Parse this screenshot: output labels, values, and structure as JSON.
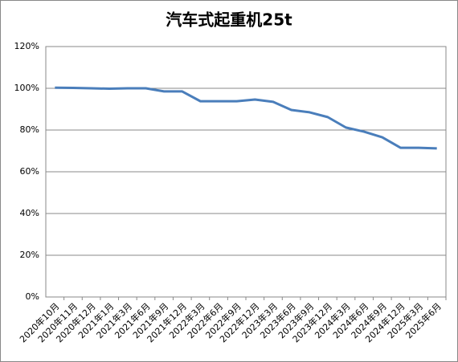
{
  "chart_data": {
    "type": "line",
    "title": "汽车式起重机25t",
    "categories": [
      "2020年10月",
      "2020年11月",
      "2020年12月",
      "2021年1月",
      "2021年3月",
      "2021年6月",
      "2021年9月",
      "2021年12月",
      "2022年3月",
      "2022年6月",
      "2022年9月",
      "2022年12月",
      "2023年3月",
      "2023年6月",
      "2023年9月",
      "2023年12月",
      "2024年3月",
      "2024年6月",
      "2024年9月",
      "2024年12月",
      "2025年3月",
      "2025年6月"
    ],
    "values": [
      100.3,
      100.2,
      100.0,
      99.8,
      100.0,
      100.0,
      98.5,
      98.5,
      93.8,
      93.8,
      93.8,
      94.6,
      93.5,
      89.6,
      88.5,
      86.2,
      81.2,
      79.2,
      76.5,
      71.5,
      71.5,
      71.2
    ],
    "color": "#4a7ebb",
    "ylim": [
      0,
      120
    ],
    "yticks": [
      {
        "value": 0,
        "label": "0%"
      },
      {
        "value": 20,
        "label": "20%"
      },
      {
        "value": 40,
        "label": "40%"
      },
      {
        "value": 60,
        "label": "60%"
      },
      {
        "value": 80,
        "label": "80%"
      },
      {
        "value": 100,
        "label": "100%"
      },
      {
        "value": 120,
        "label": "120%"
      }
    ],
    "grid": true
  }
}
